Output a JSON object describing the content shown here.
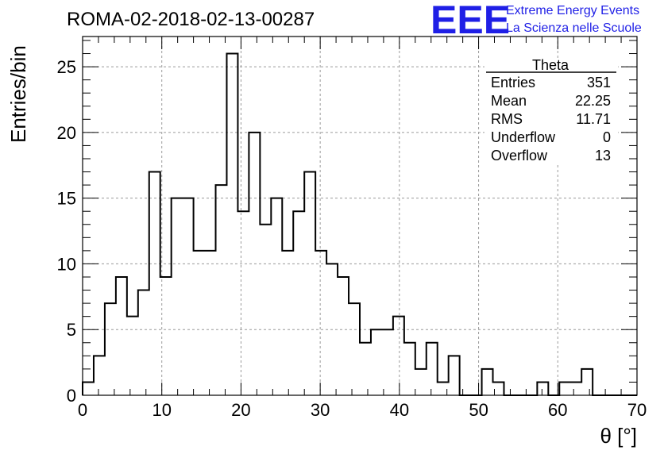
{
  "chart_data": {
    "type": "bar",
    "style": "step-histogram",
    "title": "ROMA-02-2018-02-13-00287",
    "xlabel": "θ [°]",
    "ylabel": "Entries/bin",
    "xlim": [
      0,
      70
    ],
    "ylim": [
      0,
      27.3
    ],
    "bin_width": 1.4,
    "x_ticks": [
      0,
      10,
      20,
      30,
      40,
      50,
      60,
      70
    ],
    "y_ticks": [
      0,
      5,
      10,
      15,
      20,
      25
    ],
    "grid": true,
    "values": [
      1,
      3,
      7,
      9,
      6,
      8,
      17,
      9,
      15,
      15,
      11,
      11,
      16,
      26,
      14,
      20,
      13,
      15,
      11,
      14,
      17,
      11,
      10,
      9,
      7,
      4,
      5,
      5,
      6,
      4,
      2,
      4,
      1,
      3,
      0,
      0,
      2,
      1,
      0,
      0,
      0,
      1,
      0,
      1,
      1,
      2,
      0,
      0,
      0,
      0
    ],
    "stats_box": {
      "name": "Theta",
      "rows": [
        {
          "label": "Entries",
          "value": "351"
        },
        {
          "label": "Mean",
          "value": "22.25"
        },
        {
          "label": "RMS",
          "value": "11.71"
        },
        {
          "label": "Underflow",
          "value": "0"
        },
        {
          "label": "Overflow",
          "value": "13"
        }
      ]
    },
    "line_color": "#000000"
  },
  "logo": {
    "mark": "EEE",
    "line1": "Extreme Energy Events",
    "line2": "La Scienza nelle Scuole",
    "color": "#1f1fe6"
  }
}
